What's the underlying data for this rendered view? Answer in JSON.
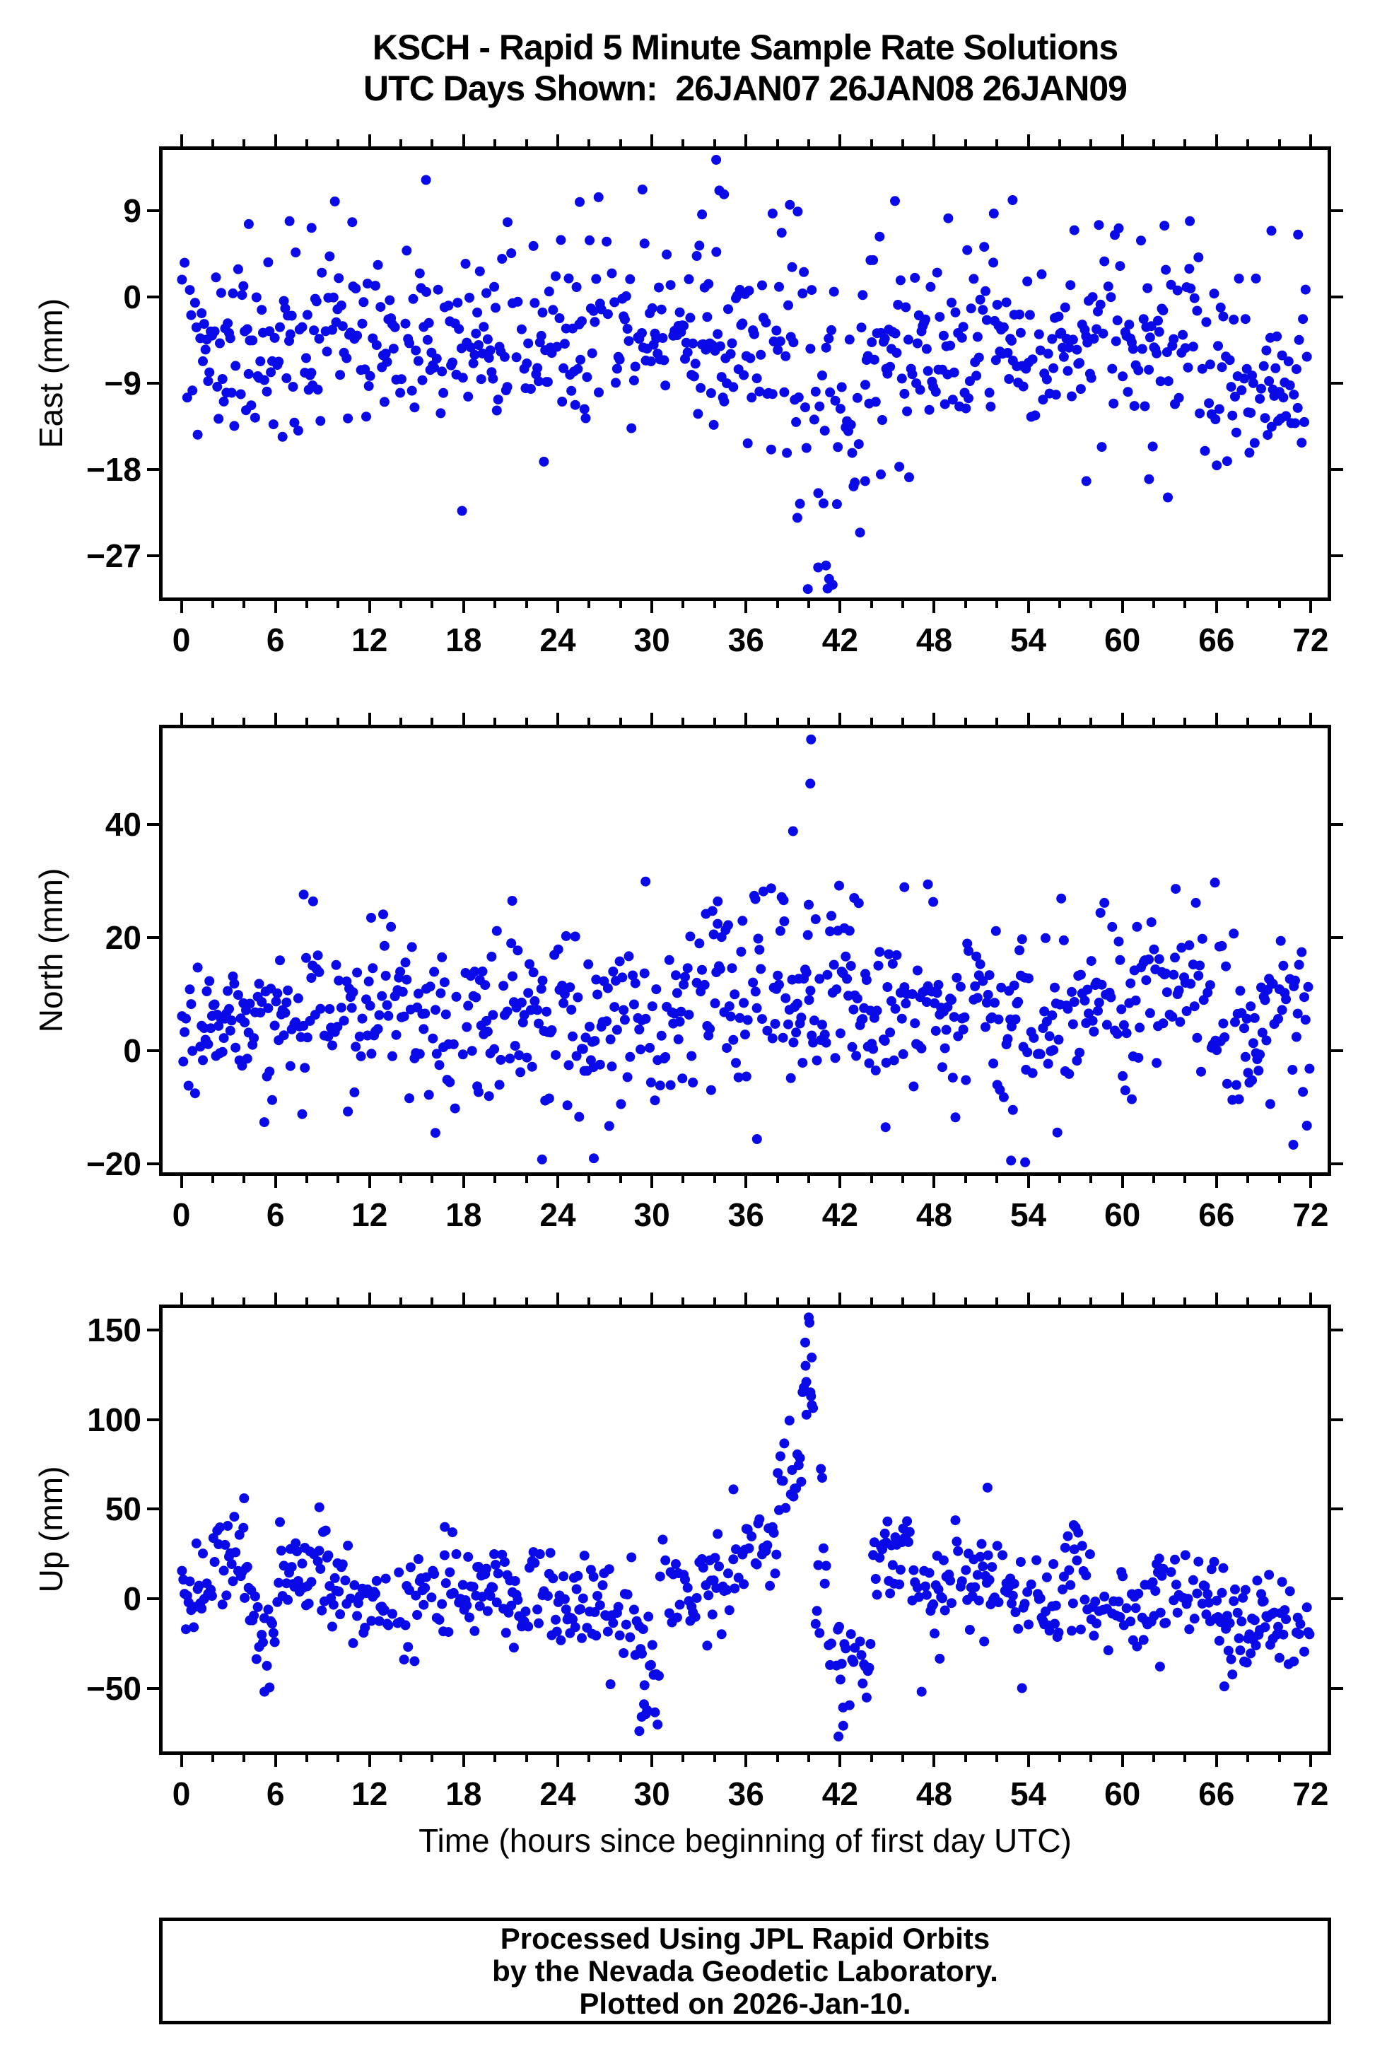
{
  "title": {
    "line1": "KSCH - Rapid 5 Minute Sample Rate Solutions",
    "line2": "UTC Days Shown:  26JAN07 26JAN08 26JAN09"
  },
  "station": "KSCH",
  "days_shown": [
    "26JAN07",
    "26JAN08",
    "26JAN09"
  ],
  "footer": {
    "lines": [
      "Processed Using JPL Rapid Orbits",
      "by the Nevada Geodetic Laboratory.",
      "Plotted on 2026-Jan-10."
    ]
  },
  "colors": {
    "background": "#ffffff",
    "axis": "#000000",
    "text": "#000000",
    "marker": "#0a0ae8"
  },
  "chart_data": {
    "type": "scatter",
    "title": "KSCH - Rapid 5 Minute Sample Rate Solutions",
    "subtitle": "UTC Days Shown:  26JAN07 26JAN08 26JAN09",
    "xlabel": "Time (hours since beginning of first day UTC)",
    "x_range": [
      -1.42,
      73.31
    ],
    "x_major_ticks": [
      0,
      6,
      12,
      18,
      24,
      30,
      36,
      42,
      48,
      54,
      60,
      66,
      72
    ],
    "x_minor_tick_step": 2,
    "sample_interval_hours": 0.0833,
    "seed": 20260110,
    "drop_fraction": 0.18,
    "marker": {
      "shape": "circle",
      "color": "#0a0ae8",
      "radius_px": 7
    },
    "grid": false,
    "legend": "none",
    "panels": [
      {
        "id": "east",
        "ylabel": "East (mm)",
        "ylim": [
          -31.7,
          15.7
        ],
        "yticks": [
          9,
          0,
          -9,
          -18,
          -27
        ],
        "segments": [
          {
            "t0": 0,
            "t1": 36,
            "mean": -4.5,
            "std": 4.6
          },
          {
            "t0": 36,
            "t1": 39,
            "mean": -6.0,
            "std": 5.5
          },
          {
            "t0": 39,
            "t1": 44,
            "mean": -8.0,
            "std": 7.0
          },
          {
            "t0": 44,
            "t1": 66,
            "mean": -4.8,
            "std": 4.6
          },
          {
            "t0": 66,
            "t1": 71.5,
            "mean": -9.5,
            "std": 4.2
          },
          {
            "t0": 71.5,
            "t1": 72.2,
            "mean": -6.0,
            "std": 4.0
          }
        ],
        "outliers": [
          [
            4.3,
            7.6
          ],
          [
            6.9,
            7.9
          ],
          [
            8.3,
            7.2
          ],
          [
            10.9,
            7.8
          ],
          [
            15.6,
            12.2
          ],
          [
            17.9,
            -22.3
          ],
          [
            20.8,
            7.8
          ],
          [
            25.4,
            9.9
          ],
          [
            26.6,
            10.4
          ],
          [
            29.4,
            11.2
          ],
          [
            33.2,
            8.6
          ],
          [
            34.1,
            14.3
          ],
          [
            34.3,
            11.1
          ],
          [
            34.6,
            10.7
          ],
          [
            37.7,
            8.7
          ],
          [
            38.8,
            9.6
          ],
          [
            39.3,
            8.9
          ],
          [
            40.6,
            -28.2
          ],
          [
            41.1,
            -28.0
          ],
          [
            41.2,
            -30.4
          ],
          [
            41.3,
            -29.4
          ],
          [
            41.8,
            -21.6
          ],
          [
            43.6,
            -19.2
          ],
          [
            44.6,
            -18.5
          ],
          [
            45.5,
            10.0
          ],
          [
            46.4,
            -18.8
          ],
          [
            48.9,
            8.2
          ],
          [
            51.8,
            8.7
          ],
          [
            53.0,
            10.1
          ],
          [
            57.7,
            -19.2
          ],
          [
            58.5,
            7.5
          ],
          [
            61.7,
            -19.0
          ],
          [
            62.9,
            -20.9
          ],
          [
            64.3,
            7.9
          ],
          [
            69.5,
            6.9
          ],
          [
            71.2,
            6.5
          ]
        ]
      },
      {
        "id": "north",
        "ylabel": "North (mm)",
        "ylim": [
          -22.1,
          57.6
        ],
        "yticks": [
          40,
          20,
          0,
          -20
        ],
        "segments": [
          {
            "t0": 0,
            "t1": 8,
            "mean": 4.0,
            "std": 6.5
          },
          {
            "t0": 8,
            "t1": 16,
            "mean": 7.5,
            "std": 7.0
          },
          {
            "t0": 16,
            "t1": 24,
            "mean": 6.0,
            "std": 7.5
          },
          {
            "t0": 24,
            "t1": 32,
            "mean": 4.5,
            "std": 7.0
          },
          {
            "t0": 32,
            "t1": 44,
            "mean": 9.5,
            "std": 7.5
          },
          {
            "t0": 44,
            "t1": 52,
            "mean": 6.5,
            "std": 6.5
          },
          {
            "t0": 52,
            "t1": 56,
            "mean": 4.0,
            "std": 8.0
          },
          {
            "t0": 56,
            "t1": 66,
            "mean": 9.5,
            "std": 6.5
          },
          {
            "t0": 66,
            "t1": 72.2,
            "mean": 6.0,
            "std": 7.0
          }
        ],
        "outliers": [
          [
            7.8,
            27.6
          ],
          [
            8.4,
            26.4
          ],
          [
            12.1,
            23.5
          ],
          [
            16.2,
            -14.5
          ],
          [
            21.1,
            26.5
          ],
          [
            23.0,
            -19.2
          ],
          [
            26.3,
            -19.0
          ],
          [
            29.6,
            29.9
          ],
          [
            34.2,
            26.4
          ],
          [
            36.6,
            26.8
          ],
          [
            36.7,
            -15.6
          ],
          [
            38.4,
            26.6
          ],
          [
            39.0,
            38.8
          ],
          [
            40.1,
            47.2
          ],
          [
            40.15,
            55.0
          ],
          [
            40.0,
            25.8
          ],
          [
            42.9,
            27.0
          ],
          [
            44.9,
            -13.5
          ],
          [
            46.1,
            28.9
          ],
          [
            47.6,
            29.4
          ],
          [
            52.9,
            -19.4
          ],
          [
            53.8,
            -19.7
          ],
          [
            63.4,
            28.6
          ],
          [
            65.9,
            29.7
          ],
          [
            70.9,
            -16.6
          ]
        ]
      },
      {
        "id": "up",
        "ylabel": "Up (mm)",
        "ylim": [
          -87.3,
          164.2
        ],
        "yticks": [
          150,
          100,
          50,
          0,
          -50
        ],
        "segments": [
          {
            "t0": 0,
            "t1": 2,
            "mean": 5,
            "std": 12
          },
          {
            "t0": 2,
            "t1": 4.3,
            "mean": 22,
            "std": 14
          },
          {
            "t0": 4.3,
            "t1": 6,
            "mean": -12,
            "std": 16
          },
          {
            "t0": 6,
            "t1": 9.5,
            "mean": 14,
            "std": 14
          },
          {
            "t0": 9.5,
            "t1": 12,
            "mean": 2,
            "std": 13
          },
          {
            "t0": 12,
            "t1": 15,
            "mean": -4,
            "std": 14
          },
          {
            "t0": 15,
            "t1": 18,
            "mean": 8,
            "std": 13
          },
          {
            "t0": 18,
            "t1": 21,
            "mean": 4,
            "std": 12
          },
          {
            "t0": 21,
            "t1": 24,
            "mean": 0,
            "std": 13
          },
          {
            "t0": 24,
            "t1": 27,
            "mean": -6,
            "std": 14
          },
          {
            "t0": 27,
            "t1": 29,
            "mean": -15,
            "std": 16
          },
          {
            "t0": 29,
            "t1": 30.5,
            "mean": -35,
            "std": 20
          },
          {
            "t0": 30.5,
            "t1": 33,
            "mean": 4,
            "std": 14
          },
          {
            "t0": 33,
            "t1": 36,
            "mean": 12,
            "std": 15
          },
          {
            "t0": 36,
            "t1": 38,
            "mean": 33,
            "std": 16
          },
          {
            "t0": 38,
            "t1": 39.5,
            "mean": 68,
            "std": 14
          },
          {
            "t0": 39.5,
            "t1": 40.3,
            "mean": 112,
            "std": 22
          },
          {
            "t0": 40.3,
            "t1": 41.2,
            "mean": 25,
            "std": 25
          },
          {
            "t0": 41.2,
            "t1": 44,
            "mean": -38,
            "std": 16
          },
          {
            "t0": 44,
            "t1": 46.5,
            "mean": 24,
            "std": 11
          },
          {
            "t0": 46.5,
            "t1": 50,
            "mean": 7,
            "std": 12
          },
          {
            "t0": 50,
            "t1": 53,
            "mean": 10,
            "std": 13
          },
          {
            "t0": 53,
            "t1": 56,
            "mean": 0,
            "std": 13
          },
          {
            "t0": 56,
            "t1": 58,
            "mean": 14,
            "std": 13
          },
          {
            "t0": 58,
            "t1": 62,
            "mean": -8,
            "std": 12
          },
          {
            "t0": 62,
            "t1": 66,
            "mean": -2,
            "std": 13
          },
          {
            "t0": 66,
            "t1": 72.2,
            "mean": -13,
            "std": 12
          }
        ],
        "outliers": [
          [
            4.0,
            56
          ],
          [
            5.3,
            -52
          ],
          [
            8.8,
            51
          ],
          [
            16.8,
            40
          ],
          [
            29.2,
            -74
          ],
          [
            29.35,
            -66
          ],
          [
            29.5,
            -59
          ],
          [
            35.2,
            61
          ],
          [
            39.8,
            130
          ],
          [
            39.85,
            121
          ],
          [
            40.0,
            157
          ],
          [
            40.05,
            154
          ],
          [
            40.15,
            113
          ],
          [
            40.2,
            108
          ],
          [
            41.9,
            -77
          ],
          [
            42.2,
            -71
          ],
          [
            47.2,
            -52
          ],
          [
            51.4,
            62
          ],
          [
            53.6,
            -50
          ],
          [
            56.9,
            41
          ],
          [
            62.4,
            -38
          ],
          [
            66.5,
            -49
          ]
        ]
      }
    ]
  }
}
